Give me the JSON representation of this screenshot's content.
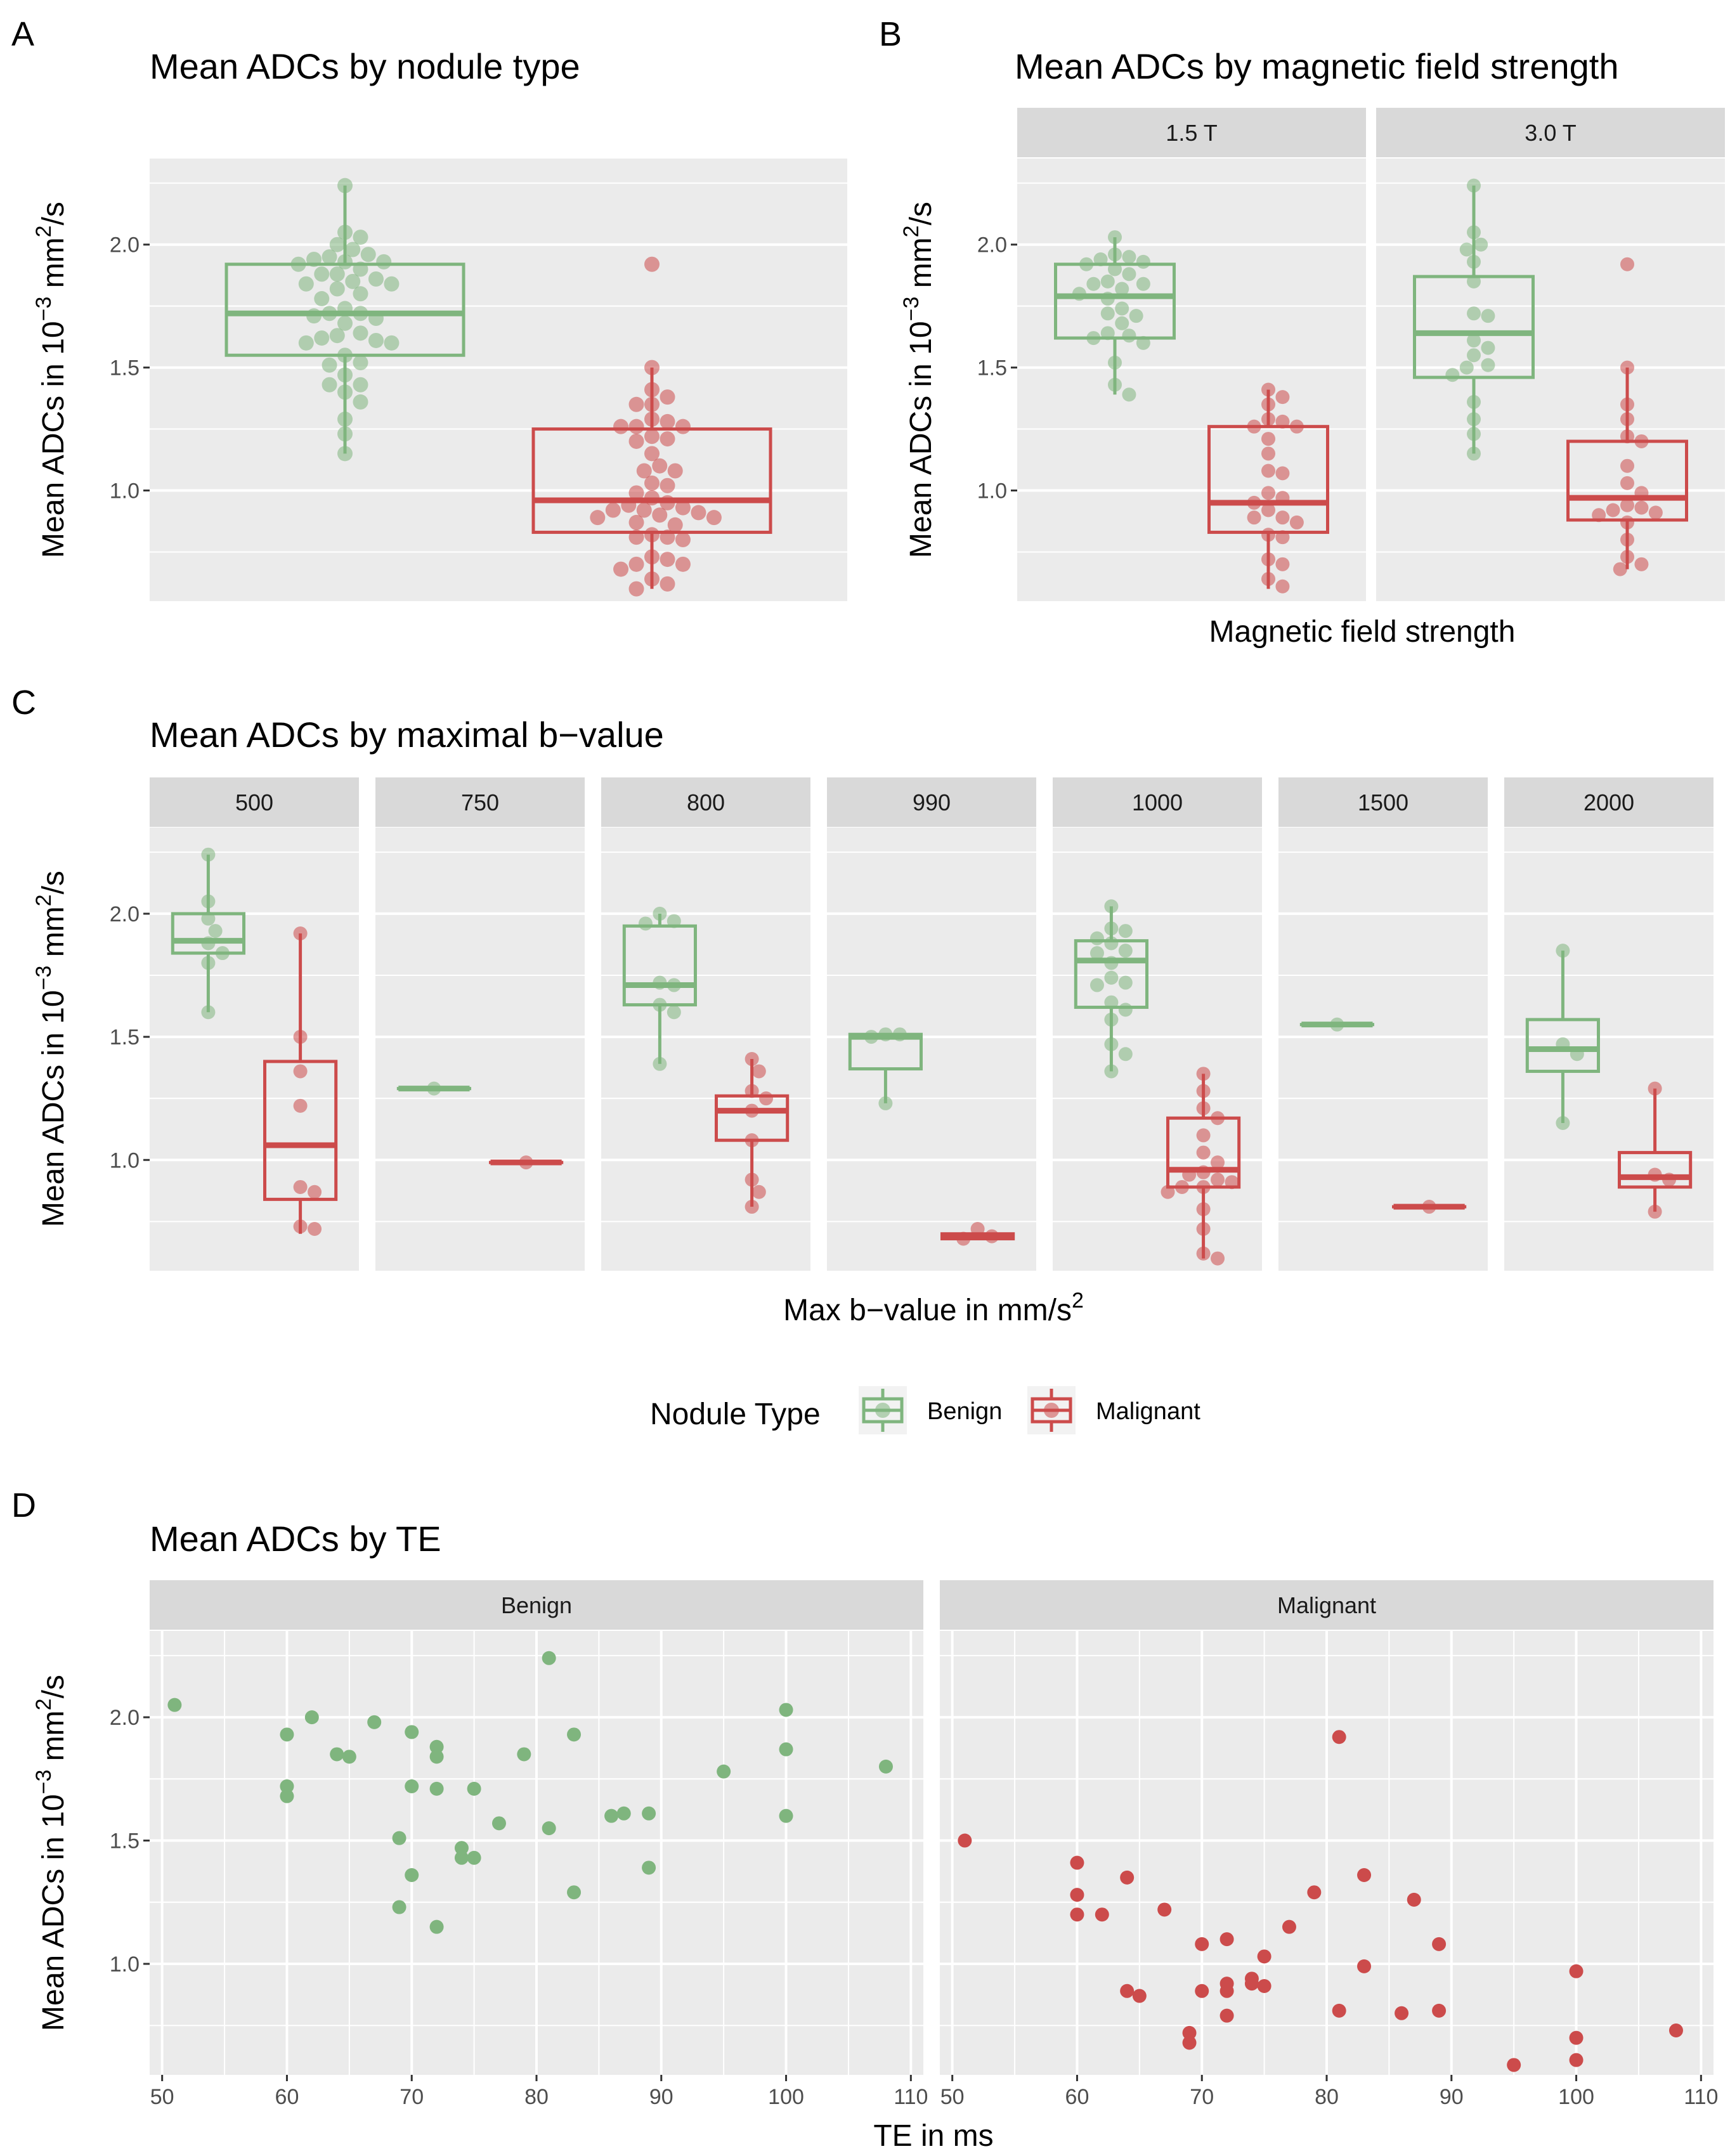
{
  "colors": {
    "benign": "#7FB57E",
    "malignant": "#CC4B4B",
    "panel_bg": "#EBEBEB",
    "strip_bg": "#D9D9D9",
    "grid": "#FFFFFF"
  },
  "y_axis": {
    "label": "Mean ADCs in 10^-3 mm^2/s",
    "label_main": "Mean ADCs in 10",
    "label_exp1": "−3",
    "label_mid": " mm",
    "label_exp2": "2",
    "label_end": "/s",
    "range": [
      0.55,
      2.35
    ],
    "ticks": [
      1.0,
      1.5,
      2.0
    ],
    "tick_labels": [
      "1.0",
      "1.5",
      "2.0"
    ]
  },
  "legend": {
    "title": "Nodule Type",
    "items": [
      "Benign",
      "Malignant"
    ]
  },
  "chart_data": [
    {
      "id": "A",
      "tag": "A",
      "type": "box",
      "title": "Mean ADCs by nodule type",
      "xlabel": "",
      "ylabel": "Mean ADCs in 10^-3 mm^2/s",
      "panels": [
        {
          "strip": null,
          "groups": [
            {
              "type": "Benign",
              "q1": 1.55,
              "median": 1.72,
              "q3": 1.92,
              "wmin": 1.15,
              "wmax": 2.24,
              "points": [
                2.24,
                2.05,
                2.03,
                2.0,
                1.98,
                1.96,
                1.95,
                1.94,
                1.93,
                1.93,
                1.92,
                1.9,
                1.88,
                1.88,
                1.86,
                1.85,
                1.84,
                1.84,
                1.82,
                1.8,
                1.78,
                1.74,
                1.72,
                1.72,
                1.7,
                1.71,
                1.68,
                1.64,
                1.63,
                1.62,
                1.61,
                1.6,
                1.6,
                1.55,
                1.52,
                1.51,
                1.47,
                1.43,
                1.43,
                1.4,
                1.36,
                1.29,
                1.23,
                1.15
              ]
            },
            {
              "type": "Malignant",
              "q1": 0.83,
              "median": 0.96,
              "q3": 1.25,
              "wmin": 0.6,
              "wmax": 1.5,
              "points": [
                1.92,
                1.5,
                1.41,
                1.38,
                1.35,
                1.35,
                1.29,
                1.28,
                1.26,
                1.26,
                1.26,
                1.22,
                1.21,
                1.2,
                1.15,
                1.1,
                1.08,
                1.08,
                1.03,
                1.02,
                0.99,
                0.97,
                0.95,
                0.94,
                0.93,
                0.92,
                0.92,
                0.91,
                0.9,
                0.89,
                0.89,
                0.87,
                0.86,
                0.82,
                0.81,
                0.81,
                0.8,
                0.73,
                0.72,
                0.7,
                0.7,
                0.68,
                0.64,
                0.62,
                0.6
              ]
            }
          ]
        }
      ]
    },
    {
      "id": "B",
      "tag": "B",
      "type": "box",
      "title": "Mean ADCs by magnetic field strength",
      "xlabel": "Magnetic field strength",
      "ylabel": "Mean ADCs in 10^-3 mm^2/s",
      "panels": [
        {
          "strip": "1.5 T",
          "groups": [
            {
              "type": "Benign",
              "q1": 1.62,
              "median": 1.79,
              "q3": 1.92,
              "wmin": 1.39,
              "wmax": 2.03,
              "points": [
                2.03,
                1.96,
                1.95,
                1.94,
                1.93,
                1.92,
                1.9,
                1.88,
                1.85,
                1.84,
                1.84,
                1.82,
                1.8,
                1.78,
                1.74,
                1.72,
                1.71,
                1.68,
                1.64,
                1.63,
                1.62,
                1.6,
                1.52,
                1.43,
                1.39
              ]
            },
            {
              "type": "Malignant",
              "q1": 0.83,
              "median": 0.95,
              "q3": 1.26,
              "wmin": 0.6,
              "wmax": 1.41,
              "points": [
                1.41,
                1.38,
                1.35,
                1.29,
                1.28,
                1.26,
                1.26,
                1.21,
                1.15,
                1.08,
                1.07,
                0.99,
                0.97,
                0.95,
                0.92,
                0.89,
                0.89,
                0.87,
                0.82,
                0.81,
                0.72,
                0.7,
                0.64,
                0.61
              ]
            }
          ]
        },
        {
          "strip": "3.0 T",
          "groups": [
            {
              "type": "Benign",
              "q1": 1.46,
              "median": 1.64,
              "q3": 1.87,
              "wmin": 1.15,
              "wmax": 2.24,
              "points": [
                2.24,
                2.05,
                2.0,
                1.98,
                1.93,
                1.85,
                1.72,
                1.71,
                1.61,
                1.58,
                1.55,
                1.51,
                1.5,
                1.47,
                1.36,
                1.29,
                1.23,
                1.15
              ]
            },
            {
              "type": "Malignant",
              "q1": 0.88,
              "median": 0.97,
              "q3": 1.2,
              "wmin": 0.68,
              "wmax": 1.5,
              "points": [
                1.92,
                1.5,
                1.35,
                1.29,
                1.22,
                1.2,
                1.1,
                1.03,
                0.99,
                0.94,
                0.93,
                0.92,
                0.91,
                0.9,
                0.87,
                0.8,
                0.73,
                0.7,
                0.68
              ]
            }
          ]
        }
      ]
    },
    {
      "id": "C",
      "tag": "C",
      "type": "box",
      "title": "Mean ADCs by maximal b−value",
      "xlabel": "Max b−value in mm/s^2",
      "ylabel": "Mean ADCs in 10^-3 mm^2/s",
      "panels": [
        {
          "strip": "500",
          "groups": [
            {
              "type": "Benign",
              "q1": 1.84,
              "median": 1.89,
              "q3": 2.0,
              "wmin": 1.6,
              "wmax": 2.24,
              "points": [
                2.24,
                2.05,
                1.98,
                1.93,
                1.88,
                1.84,
                1.8,
                1.6
              ]
            },
            {
              "type": "Malignant",
              "q1": 0.84,
              "median": 1.06,
              "q3": 1.4,
              "wmin": 0.7,
              "wmax": 1.92,
              "points": [
                1.92,
                1.5,
                1.36,
                1.22,
                0.89,
                0.87,
                0.73,
                0.72
              ]
            }
          ]
        },
        {
          "strip": "750",
          "groups": [
            {
              "type": "Benign",
              "q1": 1.29,
              "median": 1.29,
              "q3": 1.29,
              "wmin": 1.29,
              "wmax": 1.29,
              "points": [
                1.29
              ]
            },
            {
              "type": "Malignant",
              "q1": 0.99,
              "median": 0.99,
              "q3": 0.99,
              "wmin": 0.99,
              "wmax": 0.99,
              "points": [
                0.99
              ]
            }
          ]
        },
        {
          "strip": "800",
          "groups": [
            {
              "type": "Benign",
              "q1": 1.63,
              "median": 1.71,
              "q3": 1.95,
              "wmin": 1.39,
              "wmax": 2.0,
              "points": [
                2.0,
                1.97,
                1.96,
                1.72,
                1.71,
                1.63,
                1.6,
                1.39
              ]
            },
            {
              "type": "Malignant",
              "q1": 1.08,
              "median": 1.2,
              "q3": 1.26,
              "wmin": 0.81,
              "wmax": 1.41,
              "points": [
                1.41,
                1.36,
                1.28,
                1.25,
                1.2,
                1.08,
                0.92,
                0.87,
                0.81
              ]
            }
          ]
        },
        {
          "strip": "990",
          "groups": [
            {
              "type": "Benign",
              "q1": 1.37,
              "median": 1.5,
              "q3": 1.51,
              "wmin": 1.23,
              "wmax": 1.51,
              "points": [
                1.51,
                1.51,
                1.5,
                1.23
              ]
            },
            {
              "type": "Malignant",
              "q1": 0.68,
              "median": 0.69,
              "q3": 0.7,
              "wmin": 0.68,
              "wmax": 0.7,
              "points": [
                0.72,
                0.69,
                0.68
              ]
            }
          ]
        },
        {
          "strip": "1000",
          "groups": [
            {
              "type": "Benign",
              "q1": 1.62,
              "median": 1.81,
              "q3": 1.89,
              "wmin": 1.36,
              "wmax": 2.03,
              "points": [
                2.03,
                1.94,
                1.93,
                1.9,
                1.88,
                1.85,
                1.84,
                1.8,
                1.74,
                1.72,
                1.71,
                1.64,
                1.61,
                1.57,
                1.47,
                1.43,
                1.36
              ]
            },
            {
              "type": "Malignant",
              "q1": 0.89,
              "median": 0.96,
              "q3": 1.17,
              "wmin": 0.6,
              "wmax": 1.35,
              "points": [
                1.35,
                1.28,
                1.21,
                1.17,
                1.1,
                1.03,
                0.99,
                0.95,
                0.94,
                0.92,
                0.91,
                0.89,
                0.89,
                0.87,
                0.8,
                0.72,
                0.62,
                0.6
              ]
            }
          ]
        },
        {
          "strip": "1500",
          "groups": [
            {
              "type": "Benign",
              "q1": 1.55,
              "median": 1.55,
              "q3": 1.55,
              "wmin": 1.55,
              "wmax": 1.55,
              "points": [
                1.55
              ]
            },
            {
              "type": "Malignant",
              "q1": 0.81,
              "median": 0.81,
              "q3": 0.81,
              "wmin": 0.81,
              "wmax": 0.81,
              "points": [
                0.81
              ]
            }
          ]
        },
        {
          "strip": "2000",
          "groups": [
            {
              "type": "Benign",
              "q1": 1.36,
              "median": 1.45,
              "q3": 1.57,
              "wmin": 1.15,
              "wmax": 1.85,
              "points": [
                1.85,
                1.47,
                1.43,
                1.15
              ]
            },
            {
              "type": "Malignant",
              "q1": 0.89,
              "median": 0.93,
              "q3": 1.03,
              "wmin": 0.79,
              "wmax": 1.29,
              "points": [
                1.29,
                0.94,
                0.92,
                0.79
              ]
            }
          ]
        }
      ]
    },
    {
      "id": "D",
      "tag": "D",
      "type": "scatter",
      "title": "Mean ADCs by TE",
      "xlabel": "TE in ms",
      "ylabel": "Mean ADCs in 10^-3 mm^2/s",
      "xlim": [
        49,
        111
      ],
      "xticks": [
        50,
        60,
        70,
        80,
        90,
        100,
        110
      ],
      "panels": [
        {
          "strip": "Benign",
          "points": [
            [
              51,
              2.05
            ],
            [
              60,
              1.93
            ],
            [
              60,
              1.72
            ],
            [
              60,
              1.68
            ],
            [
              62,
              2.0
            ],
            [
              64,
              1.85
            ],
            [
              65,
              1.84
            ],
            [
              67,
              1.98
            ],
            [
              69,
              1.51
            ],
            [
              69,
              1.23
            ],
            [
              70,
              1.94
            ],
            [
              70,
              1.72
            ],
            [
              70,
              1.36
            ],
            [
              72,
              1.88
            ],
            [
              72,
              1.84
            ],
            [
              72,
              1.71
            ],
            [
              72,
              1.15
            ],
            [
              74,
              1.47
            ],
            [
              74,
              1.43
            ],
            [
              75,
              1.71
            ],
            [
              75,
              1.43
            ],
            [
              77,
              1.57
            ],
            [
              79,
              1.85
            ],
            [
              81,
              2.24
            ],
            [
              81,
              1.55
            ],
            [
              83,
              1.93
            ],
            [
              83,
              1.29
            ],
            [
              86,
              1.6
            ],
            [
              87,
              1.61
            ],
            [
              89,
              1.61
            ],
            [
              89,
              1.39
            ],
            [
              95,
              1.78
            ],
            [
              100,
              2.03
            ],
            [
              100,
              1.87
            ],
            [
              100,
              1.6
            ],
            [
              108,
              1.8
            ]
          ]
        },
        {
          "strip": "Malignant",
          "points": [
            [
              51,
              1.5
            ],
            [
              60,
              1.41
            ],
            [
              60,
              1.28
            ],
            [
              60,
              1.2
            ],
            [
              62,
              1.2
            ],
            [
              64,
              1.35
            ],
            [
              64,
              0.89
            ],
            [
              65,
              0.87
            ],
            [
              67,
              1.22
            ],
            [
              69,
              0.72
            ],
            [
              69,
              0.68
            ],
            [
              70,
              1.08
            ],
            [
              70,
              0.89
            ],
            [
              72,
              1.1
            ],
            [
              72,
              0.92
            ],
            [
              72,
              0.89
            ],
            [
              72,
              0.79
            ],
            [
              74,
              0.94
            ],
            [
              74,
              0.92
            ],
            [
              75,
              1.03
            ],
            [
              75,
              0.91
            ],
            [
              77,
              1.15
            ],
            [
              79,
              1.29
            ],
            [
              81,
              1.92
            ],
            [
              81,
              0.81
            ],
            [
              83,
              1.36
            ],
            [
              83,
              0.99
            ],
            [
              86,
              0.8
            ],
            [
              87,
              1.26
            ],
            [
              89,
              1.08
            ],
            [
              89,
              0.81
            ],
            [
              95,
              0.59
            ],
            [
              100,
              0.97
            ],
            [
              100,
              0.7
            ],
            [
              100,
              0.61
            ],
            [
              108,
              0.73
            ]
          ]
        }
      ]
    }
  ]
}
